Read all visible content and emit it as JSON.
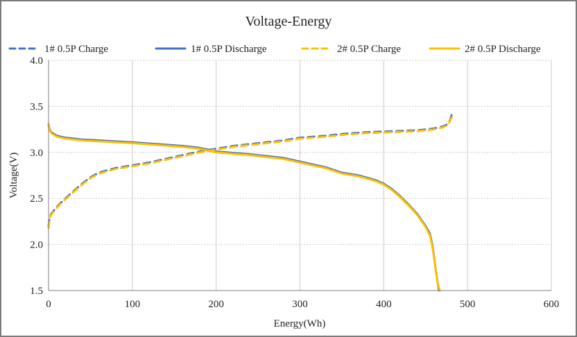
{
  "chart_data": {
    "type": "line",
    "title": "Voltage-Energy",
    "xlabel": "Energy(Wh)",
    "ylabel": "Voltage(V)",
    "xlim": [
      0,
      600
    ],
    "ylim": [
      1.5,
      4.0
    ],
    "xticks": [
      0,
      100,
      200,
      300,
      400,
      500,
      600
    ],
    "yticks": [
      1.5,
      2.0,
      2.5,
      3.0,
      3.5,
      4.0
    ],
    "xtick_labels": [
      "0",
      "100",
      "200",
      "300",
      "400",
      "500",
      "600"
    ],
    "ytick_labels": [
      "1.5",
      "2.0",
      "2.5",
      "3.0",
      "3.5",
      "4.0"
    ],
    "grid": true,
    "legend_position": "top",
    "series": [
      {
        "name": "1# 0.5P Charge",
        "color": "#4472C4",
        "style": "dashed",
        "points": [
          [
            0,
            2.2
          ],
          [
            1,
            2.28
          ],
          [
            3,
            2.33
          ],
          [
            10,
            2.41
          ],
          [
            20,
            2.5
          ],
          [
            30,
            2.58
          ],
          [
            40,
            2.66
          ],
          [
            50,
            2.73
          ],
          [
            60,
            2.78
          ],
          [
            80,
            2.83
          ],
          [
            100,
            2.86
          ],
          [
            120,
            2.89
          ],
          [
            140,
            2.93
          ],
          [
            160,
            2.97
          ],
          [
            180,
            3.01
          ],
          [
            200,
            3.04
          ],
          [
            220,
            3.07
          ],
          [
            250,
            3.1
          ],
          [
            280,
            3.13
          ],
          [
            300,
            3.16
          ],
          [
            330,
            3.18
          ],
          [
            350,
            3.2
          ],
          [
            380,
            3.22
          ],
          [
            410,
            3.23
          ],
          [
            440,
            3.24
          ],
          [
            460,
            3.26
          ],
          [
            470,
            3.28
          ],
          [
            475,
            3.3
          ],
          [
            478,
            3.33
          ],
          [
            480,
            3.37
          ],
          [
            481,
            3.41
          ]
        ]
      },
      {
        "name": "1# 0.5P Discharge",
        "color": "#4472C4",
        "style": "solid",
        "points": [
          [
            0,
            3.3
          ],
          [
            1,
            3.26
          ],
          [
            3,
            3.22
          ],
          [
            10,
            3.18
          ],
          [
            20,
            3.16
          ],
          [
            40,
            3.14
          ],
          [
            60,
            3.13
          ],
          [
            100,
            3.11
          ],
          [
            130,
            3.09
          ],
          [
            160,
            3.07
          ],
          [
            180,
            3.05
          ],
          [
            200,
            3.01
          ],
          [
            240,
            2.98
          ],
          [
            280,
            2.94
          ],
          [
            300,
            2.9
          ],
          [
            330,
            2.84
          ],
          [
            350,
            2.78
          ],
          [
            370,
            2.75
          ],
          [
            390,
            2.7
          ],
          [
            400,
            2.66
          ],
          [
            410,
            2.6
          ],
          [
            420,
            2.52
          ],
          [
            430,
            2.43
          ],
          [
            440,
            2.33
          ],
          [
            450,
            2.2
          ],
          [
            455,
            2.12
          ],
          [
            458,
            2.0
          ],
          [
            461,
            1.8
          ],
          [
            464,
            1.6
          ],
          [
            466,
            1.5
          ]
        ]
      },
      {
        "name": "2# 0.5P Charge",
        "color": "#FFC000",
        "style": "dashed",
        "points": [
          [
            0,
            2.18
          ],
          [
            1,
            2.27
          ],
          [
            3,
            2.32
          ],
          [
            10,
            2.4
          ],
          [
            20,
            2.49
          ],
          [
            30,
            2.57
          ],
          [
            40,
            2.65
          ],
          [
            50,
            2.72
          ],
          [
            60,
            2.77
          ],
          [
            80,
            2.82
          ],
          [
            100,
            2.85
          ],
          [
            120,
            2.88
          ],
          [
            140,
            2.92
          ],
          [
            160,
            2.96
          ],
          [
            180,
            3.0
          ],
          [
            200,
            3.03
          ],
          [
            220,
            3.06
          ],
          [
            250,
            3.09
          ],
          [
            280,
            3.12
          ],
          [
            300,
            3.15
          ],
          [
            330,
            3.17
          ],
          [
            350,
            3.19
          ],
          [
            380,
            3.21
          ],
          [
            410,
            3.22
          ],
          [
            440,
            3.23
          ],
          [
            460,
            3.25
          ],
          [
            470,
            3.27
          ],
          [
            475,
            3.29
          ],
          [
            478,
            3.32
          ],
          [
            480,
            3.36
          ],
          [
            482,
            3.39
          ]
        ]
      },
      {
        "name": "2# 0.5P Discharge",
        "color": "#FFC000",
        "style": "solid",
        "points": [
          [
            0,
            3.31
          ],
          [
            1,
            3.25
          ],
          [
            3,
            3.21
          ],
          [
            10,
            3.17
          ],
          [
            20,
            3.15
          ],
          [
            40,
            3.13
          ],
          [
            60,
            3.12
          ],
          [
            100,
            3.1
          ],
          [
            130,
            3.08
          ],
          [
            160,
            3.06
          ],
          [
            180,
            3.04
          ],
          [
            200,
            3.0
          ],
          [
            240,
            2.97
          ],
          [
            280,
            2.93
          ],
          [
            300,
            2.89
          ],
          [
            330,
            2.83
          ],
          [
            350,
            2.77
          ],
          [
            370,
            2.74
          ],
          [
            390,
            2.69
          ],
          [
            400,
            2.65
          ],
          [
            410,
            2.59
          ],
          [
            420,
            2.51
          ],
          [
            430,
            2.42
          ],
          [
            440,
            2.32
          ],
          [
            450,
            2.19
          ],
          [
            455,
            2.1
          ],
          [
            458,
            1.98
          ],
          [
            461,
            1.79
          ],
          [
            464,
            1.59
          ],
          [
            467,
            1.5
          ]
        ]
      }
    ]
  }
}
